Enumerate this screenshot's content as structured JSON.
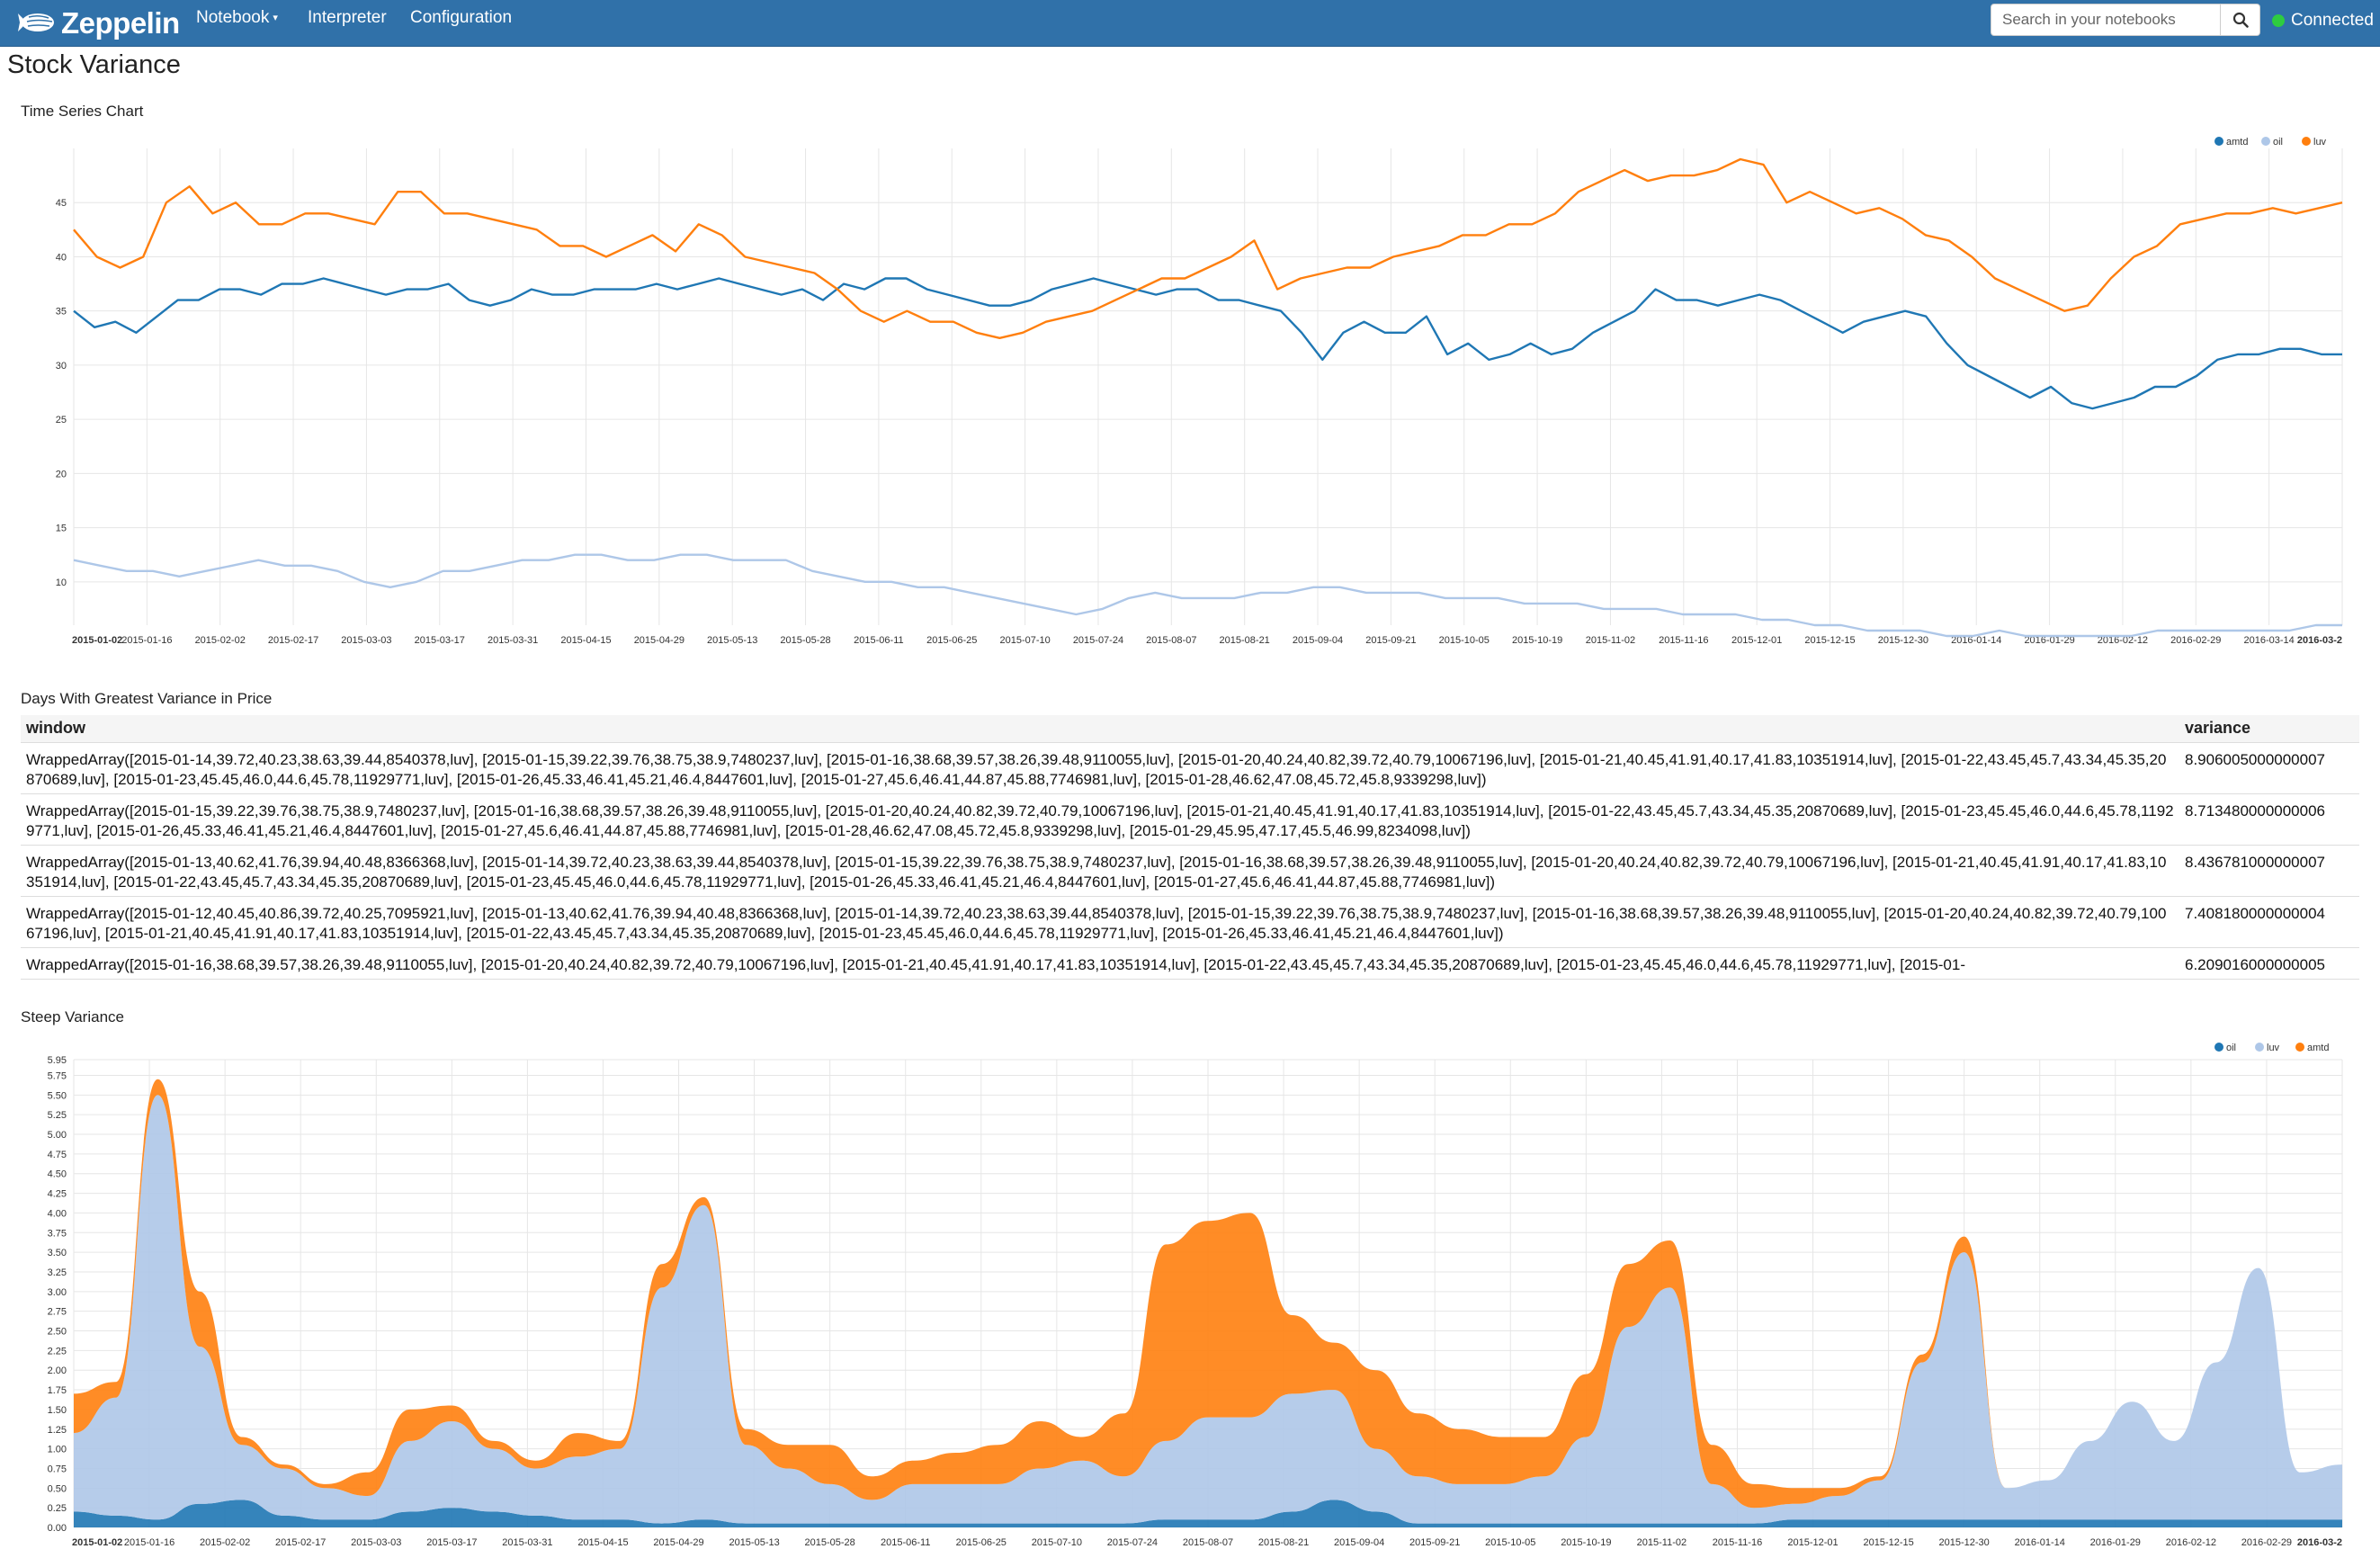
{
  "nav": {
    "brand": "Zeppelin",
    "items": [
      "Notebook",
      "Interpreter",
      "Configuration"
    ],
    "search_placeholder": "Search in your notebooks",
    "status": "Connected"
  },
  "note": {
    "title": "Stock Variance"
  },
  "colors": {
    "navbar": "#3071a9",
    "amtd": "#1f77b4",
    "oil": "#aec7e8",
    "luv": "#ff7f0e",
    "connected": "#2ecc40"
  },
  "paragraphs": {
    "time_series_title": "Time Series Chart",
    "table_title": "Days With Greatest Variance in Price",
    "steep_title": "Steep Variance"
  },
  "table": {
    "headers": [
      "window",
      "variance"
    ],
    "rows": [
      [
        "WrappedArray([2015-01-14,39.72,40.23,38.63,39.44,8540378,luv], [2015-01-15,39.22,39.76,38.75,38.9,7480237,luv], [2015-01-16,38.68,39.57,38.26,39.48,9110055,luv], [2015-01-20,40.24,40.82,39.72,40.79,10067196,luv], [2015-01-21,40.45,41.91,40.17,41.83,10351914,luv], [2015-01-22,43.45,45.7,43.34,45.35,20870689,luv], [2015-01-23,45.45,46.0,44.6,45.78,11929771,luv], [2015-01-26,45.33,46.41,45.21,46.4,8447601,luv], [2015-01-27,45.6,46.41,44.87,45.88,7746981,luv], [2015-01-28,46.62,47.08,45.72,45.8,9339298,luv])",
        "8.906005000000007"
      ],
      [
        "WrappedArray([2015-01-15,39.22,39.76,38.75,38.9,7480237,luv], [2015-01-16,38.68,39.57,38.26,39.48,9110055,luv], [2015-01-20,40.24,40.82,39.72,40.79,10067196,luv], [2015-01-21,40.45,41.91,40.17,41.83,10351914,luv], [2015-01-22,43.45,45.7,43.34,45.35,20870689,luv], [2015-01-23,45.45,46.0,44.6,45.78,11929771,luv], [2015-01-26,45.33,46.41,45.21,46.4,8447601,luv], [2015-01-27,45.6,46.41,44.87,45.88,7746981,luv], [2015-01-28,46.62,47.08,45.72,45.8,9339298,luv], [2015-01-29,45.95,47.17,45.5,46.99,8234098,luv])",
        "8.713480000000006"
      ],
      [
        "WrappedArray([2015-01-13,40.62,41.76,39.94,40.48,8366368,luv], [2015-01-14,39.72,40.23,38.63,39.44,8540378,luv], [2015-01-15,39.22,39.76,38.75,38.9,7480237,luv], [2015-01-16,38.68,39.57,38.26,39.48,9110055,luv], [2015-01-20,40.24,40.82,39.72,40.79,10067196,luv], [2015-01-21,40.45,41.91,40.17,41.83,10351914,luv], [2015-01-22,43.45,45.7,43.34,45.35,20870689,luv], [2015-01-23,45.45,46.0,44.6,45.78,11929771,luv], [2015-01-26,45.33,46.41,45.21,46.4,8447601,luv], [2015-01-27,45.6,46.41,44.87,45.88,7746981,luv])",
        "8.436781000000007"
      ],
      [
        "WrappedArray([2015-01-12,40.45,40.86,39.72,40.25,7095921,luv], [2015-01-13,40.62,41.76,39.94,40.48,8366368,luv], [2015-01-14,39.72,40.23,38.63,39.44,8540378,luv], [2015-01-15,39.22,39.76,38.75,38.9,7480237,luv], [2015-01-16,38.68,39.57,38.26,39.48,9110055,luv], [2015-01-20,40.24,40.82,39.72,40.79,10067196,luv], [2015-01-21,40.45,41.91,40.17,41.83,10351914,luv], [2015-01-22,43.45,45.7,43.34,45.35,20870689,luv], [2015-01-23,45.45,46.0,44.6,45.78,11929771,luv], [2015-01-26,45.33,46.41,45.21,46.4,8447601,luv])",
        "7.408180000000004"
      ],
      [
        "WrappedArray([2015-01-16,38.68,39.57,38.26,39.48,9110055,luv], [2015-01-20,40.24,40.82,39.72,40.79,10067196,luv], [2015-01-21,40.45,41.91,40.17,41.83,10351914,luv], [2015-01-22,43.45,45.7,43.34,45.35,20870689,luv], [2015-01-23,45.45,46.0,44.6,45.78,11929771,luv], [2015-01-",
        "6.209016000000005"
      ]
    ]
  },
  "chart_data": [
    {
      "type": "line",
      "ylim": [
        6,
        50
      ],
      "yticks": [
        10,
        15,
        20,
        25,
        30,
        35,
        40,
        45
      ],
      "xticks": [
        "2015-01-02",
        "2015-01-16",
        "2015-02-02",
        "2015-02-17",
        "2015-03-03",
        "2015-03-17",
        "2015-03-31",
        "2015-04-15",
        "2015-04-29",
        "2015-05-13",
        "2015-05-28",
        "2015-06-11",
        "2015-06-25",
        "2015-07-10",
        "2015-07-24",
        "2015-08-07",
        "2015-08-21",
        "2015-09-04",
        "2015-09-21",
        "2015-10-05",
        "2015-10-19",
        "2015-11-02",
        "2015-11-16",
        "2015-12-01",
        "2015-12-15",
        "2015-12-30",
        "2016-01-14",
        "2016-01-29",
        "2016-02-12",
        "2016-02-29",
        "2016-03-14",
        "2016-03-2"
      ],
      "legend": [
        "amtd",
        "oil",
        "luv"
      ],
      "legend_position": "top-right",
      "grid": true,
      "series": [
        {
          "name": "amtd",
          "color": "#1f77b4",
          "values": [
            35,
            33.5,
            34,
            33,
            34.5,
            36,
            36,
            37,
            37,
            36.5,
            37.5,
            37.5,
            38,
            37.5,
            37,
            36.5,
            37,
            37,
            37.5,
            36,
            35.5,
            36,
            37,
            36.5,
            36.5,
            37,
            37,
            37,
            37.5,
            37,
            37.5,
            38,
            37.5,
            37,
            36.5,
            37,
            36,
            37.5,
            37,
            38,
            38,
            37,
            36.5,
            36,
            35.5,
            35.5,
            36,
            37,
            37.5,
            38,
            37.5,
            37,
            36.5,
            37,
            37,
            36,
            36,
            35.5,
            35,
            33,
            30.5,
            33,
            34,
            33,
            33,
            34.5,
            31,
            32,
            30.5,
            31,
            32,
            31,
            31.5,
            33,
            34,
            35,
            37,
            36,
            36,
            35.5,
            36,
            36.5,
            36,
            35,
            34,
            33,
            34,
            34.5,
            35,
            34.5,
            32,
            30,
            29,
            28,
            27,
            28,
            26.5,
            26,
            26.5,
            27,
            28,
            28,
            29,
            30.5,
            31,
            31,
            31.5,
            31.5,
            31,
            31
          ]
        },
        {
          "name": "oil",
          "color": "#aec7e8",
          "values": [
            12,
            11.5,
            11,
            11,
            10.5,
            11,
            11.5,
            12,
            11.5,
            11.5,
            11,
            10,
            9.5,
            10,
            11,
            11,
            11.5,
            12,
            12,
            12.5,
            12.5,
            12,
            12,
            12.5,
            12.5,
            12,
            12,
            12,
            11,
            10.5,
            10,
            10,
            9.5,
            9.5,
            9,
            8.5,
            8,
            7.5,
            7,
            7.5,
            8.5,
            9,
            8.5,
            8.5,
            8.5,
            9,
            9,
            9.5,
            9.5,
            9,
            9,
            9,
            8.5,
            8.5,
            8.5,
            8,
            8,
            8,
            7.5,
            7.5,
            7.5,
            7,
            7,
            7,
            6.5,
            6.5,
            6,
            6,
            5.5,
            5.5,
            5.5,
            5,
            5,
            5.5,
            5,
            5,
            5,
            5,
            5,
            5.5,
            5.5,
            5.5,
            5.5,
            5.5,
            5.5,
            6,
            6
          ]
        },
        {
          "name": "luv",
          "color": "#ff7f0e",
          "values": [
            42.5,
            40,
            39,
            40,
            45,
            46.5,
            44,
            45,
            43,
            43,
            44,
            44,
            43.5,
            43,
            46,
            46,
            44,
            44,
            43.5,
            43,
            42.5,
            41,
            41,
            40,
            41,
            42,
            40.5,
            43,
            42,
            40,
            39.5,
            39,
            38.5,
            37,
            35,
            34,
            35,
            34,
            34,
            33,
            32.5,
            33,
            34,
            34.5,
            35,
            36,
            37,
            38,
            38,
            39,
            40,
            41.5,
            37,
            38,
            38.5,
            39,
            39,
            40,
            40.5,
            41,
            42,
            42,
            43,
            43,
            44,
            46,
            47,
            48,
            47,
            47.5,
            47.5,
            48,
            49,
            48.5,
            45,
            46,
            45,
            44,
            44.5,
            43.5,
            42,
            41.5,
            40,
            38,
            37,
            36,
            35,
            35.5,
            38,
            40,
            41,
            43,
            43.5,
            44,
            44,
            44.5,
            44,
            44.5,
            45
          ]
        }
      ]
    },
    {
      "type": "area",
      "stacked": true,
      "ylim": [
        0,
        5.95
      ],
      "yticks": [
        0.0,
        0.25,
        0.5,
        0.75,
        1.0,
        1.25,
        1.5,
        1.75,
        2.0,
        2.25,
        2.5,
        2.75,
        3.0,
        3.25,
        3.5,
        3.75,
        4.0,
        4.25,
        4.5,
        4.75,
        5.0,
        5.25,
        5.5,
        5.75,
        5.95
      ],
      "xticks": [
        "2015-01-02",
        "2015-01-16",
        "2015-02-02",
        "2015-02-17",
        "2015-03-03",
        "2015-03-17",
        "2015-03-31",
        "2015-04-15",
        "2015-04-29",
        "2015-05-13",
        "2015-05-28",
        "2015-06-11",
        "2015-06-25",
        "2015-07-10",
        "2015-07-24",
        "2015-08-07",
        "2015-08-21",
        "2015-09-04",
        "2015-09-21",
        "2015-10-05",
        "2015-10-19",
        "2015-11-02",
        "2015-11-16",
        "2015-12-01",
        "2015-12-15",
        "2015-12-30",
        "2016-01-14",
        "2016-01-29",
        "2016-02-12",
        "2016-02-29",
        "2016-03-2"
      ],
      "legend": [
        "oil",
        "luv",
        "amtd"
      ],
      "legend_position": "top-right",
      "grid": true,
      "series": [
        {
          "name": "oil",
          "color": "#1f77b4",
          "values": [
            0.2,
            0.15,
            0.1,
            0.3,
            0.35,
            0.15,
            0.1,
            0.1,
            0.2,
            0.25,
            0.2,
            0.15,
            0.1,
            0.1,
            0.05,
            0.1,
            0.05,
            0.05,
            0.05,
            0.05,
            0.05,
            0.05,
            0.05,
            0.05,
            0.05,
            0.05,
            0.1,
            0.1,
            0.1,
            0.2,
            0.35,
            0.2,
            0.05,
            0.05,
            0.05,
            0.05,
            0.05,
            0.05,
            0.05,
            0.05,
            0.05,
            0.1,
            0.1,
            0.1,
            0.1,
            0.1,
            0.1,
            0.1,
            0.1,
            0.1,
            0.1,
            0.1,
            0.1,
            0.1,
            0.1
          ]
        },
        {
          "name": "luv",
          "color": "#aec7e8",
          "values": [
            1.0,
            1.5,
            5.4,
            2.0,
            0.7,
            0.6,
            0.4,
            0.3,
            0.9,
            1.1,
            0.8,
            0.6,
            0.8,
            0.9,
            3.0,
            4.0,
            1.0,
            0.7,
            0.5,
            0.3,
            0.5,
            0.5,
            0.5,
            0.7,
            0.8,
            0.6,
            1.0,
            1.3,
            1.3,
            1.5,
            1.4,
            0.8,
            0.6,
            0.5,
            0.5,
            0.6,
            1.1,
            2.5,
            3.0,
            0.5,
            0.2,
            0.2,
            0.3,
            0.5,
            2.0,
            3.4,
            0.4,
            0.5,
            1.0,
            1.5,
            1.0,
            2.0,
            3.2,
            0.6,
            0.7
          ]
        },
        {
          "name": "amtd",
          "color": "#ff7f0e",
          "values": [
            0.5,
            0.2,
            0.2,
            0.7,
            0.1,
            0.05,
            0.05,
            0.3,
            0.4,
            0.2,
            0.1,
            0.1,
            0.3,
            0.1,
            0.3,
            0.1,
            0.2,
            0.3,
            0.5,
            0.3,
            0.3,
            0.4,
            0.5,
            0.6,
            0.3,
            0.8,
            2.5,
            2.5,
            2.6,
            1.0,
            0.6,
            1.0,
            0.8,
            0.7,
            0.6,
            0.5,
            0.8,
            0.8,
            0.6,
            0.5,
            0.3,
            0.2,
            0.1,
            0.05,
            0.1,
            0.2,
            0,
            0,
            0,
            0,
            0,
            0,
            0,
            0,
            0
          ]
        }
      ]
    }
  ]
}
